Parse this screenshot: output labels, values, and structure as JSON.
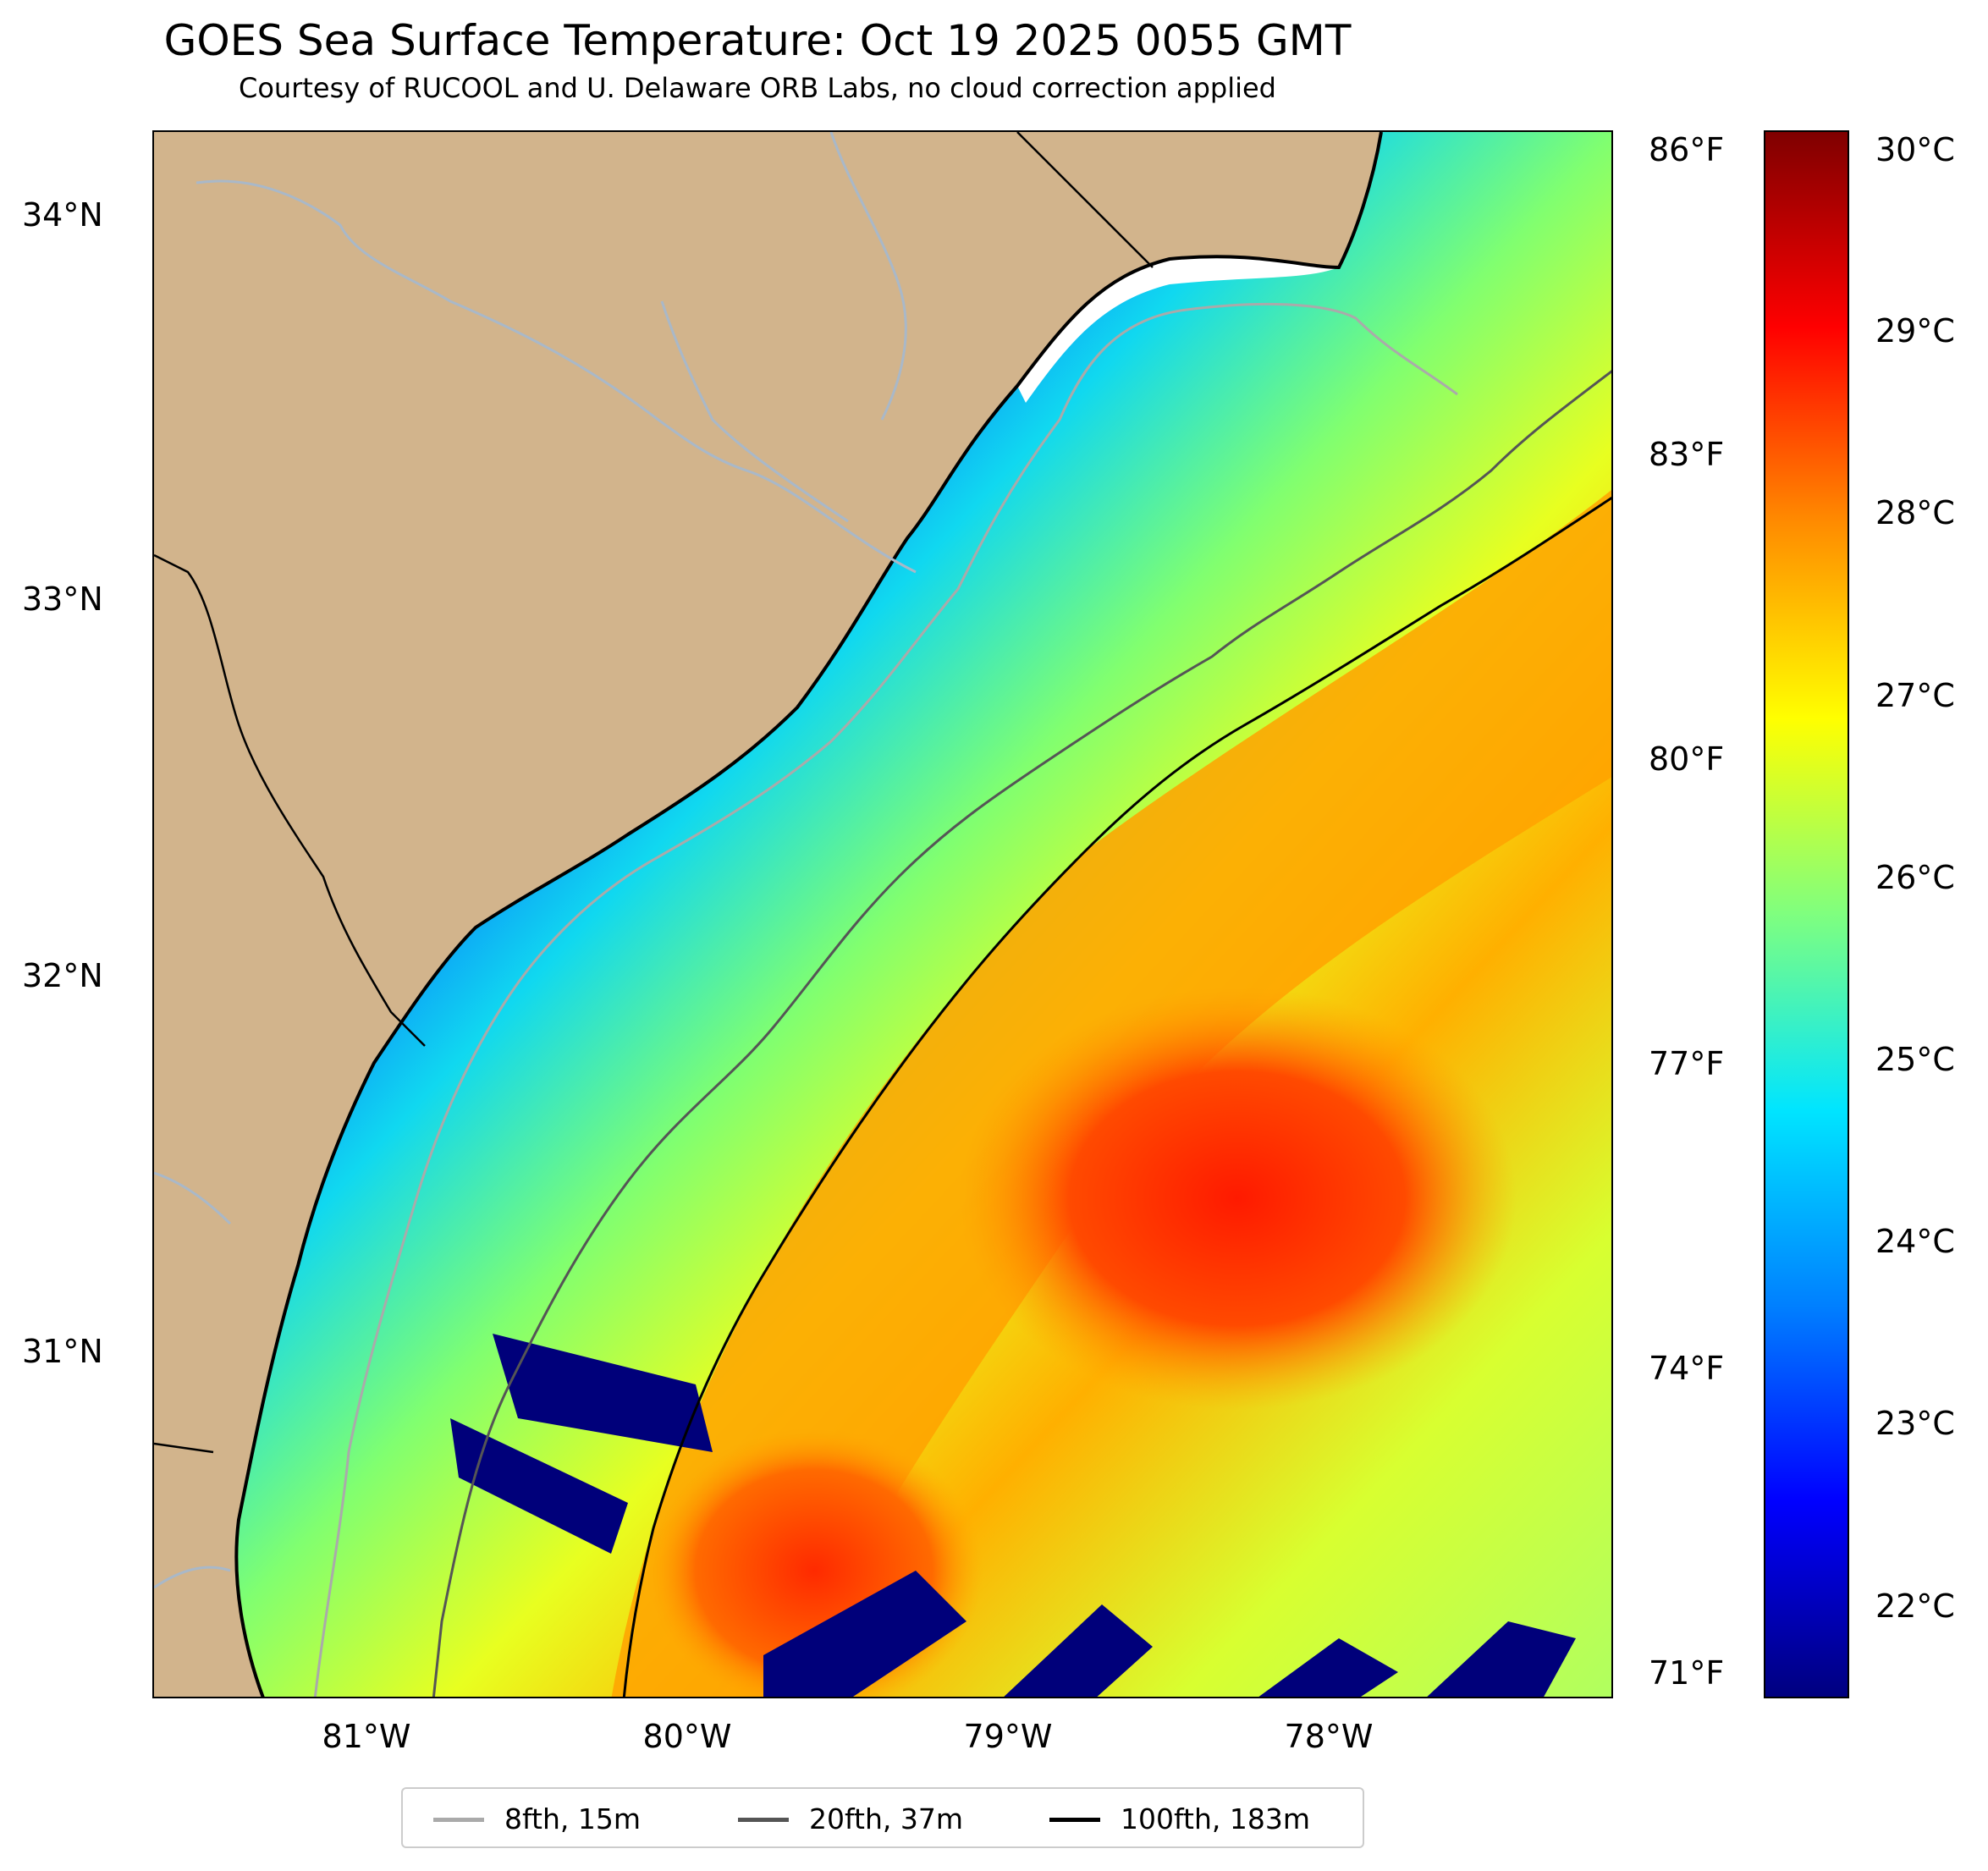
{
  "header": {
    "title": "GOES Sea Surface Temperature: Oct 19 2025 0055 GMT",
    "subtitle": "Courtesy of RUCOOL and U. Delaware ORB Labs, no cloud correction applied"
  },
  "map": {
    "lat_labels": [
      "34°N",
      "33°N",
      "32°N",
      "31°N"
    ],
    "lon_labels": [
      "81°W",
      "80°W",
      "79°W",
      "78°W"
    ],
    "land_color": "#D2B48C",
    "river_color": "#A9B8C8"
  },
  "fahrenheit_axis": {
    "labels": [
      "86°F",
      "83°F",
      "80°F",
      "77°F",
      "74°F",
      "71°F"
    ]
  },
  "colorbar": {
    "labels": [
      "30°C",
      "29°C",
      "28°C",
      "27°C",
      "26°C",
      "25°C",
      "24°C",
      "23°C",
      "22°C"
    ],
    "colors": [
      "#7f0000",
      "#ff0000",
      "#ff8c00",
      "#ffff00",
      "#7fff7f",
      "#00e5ff",
      "#0080ff",
      "#0000ff",
      "#00007f"
    ]
  },
  "legend": {
    "items": [
      {
        "label": "8fth, 15m",
        "color": "#aaaaaa"
      },
      {
        "label": "20fth, 37m",
        "color": "#555555"
      },
      {
        "label": "100fth, 183m",
        "color": "#000000"
      }
    ]
  }
}
